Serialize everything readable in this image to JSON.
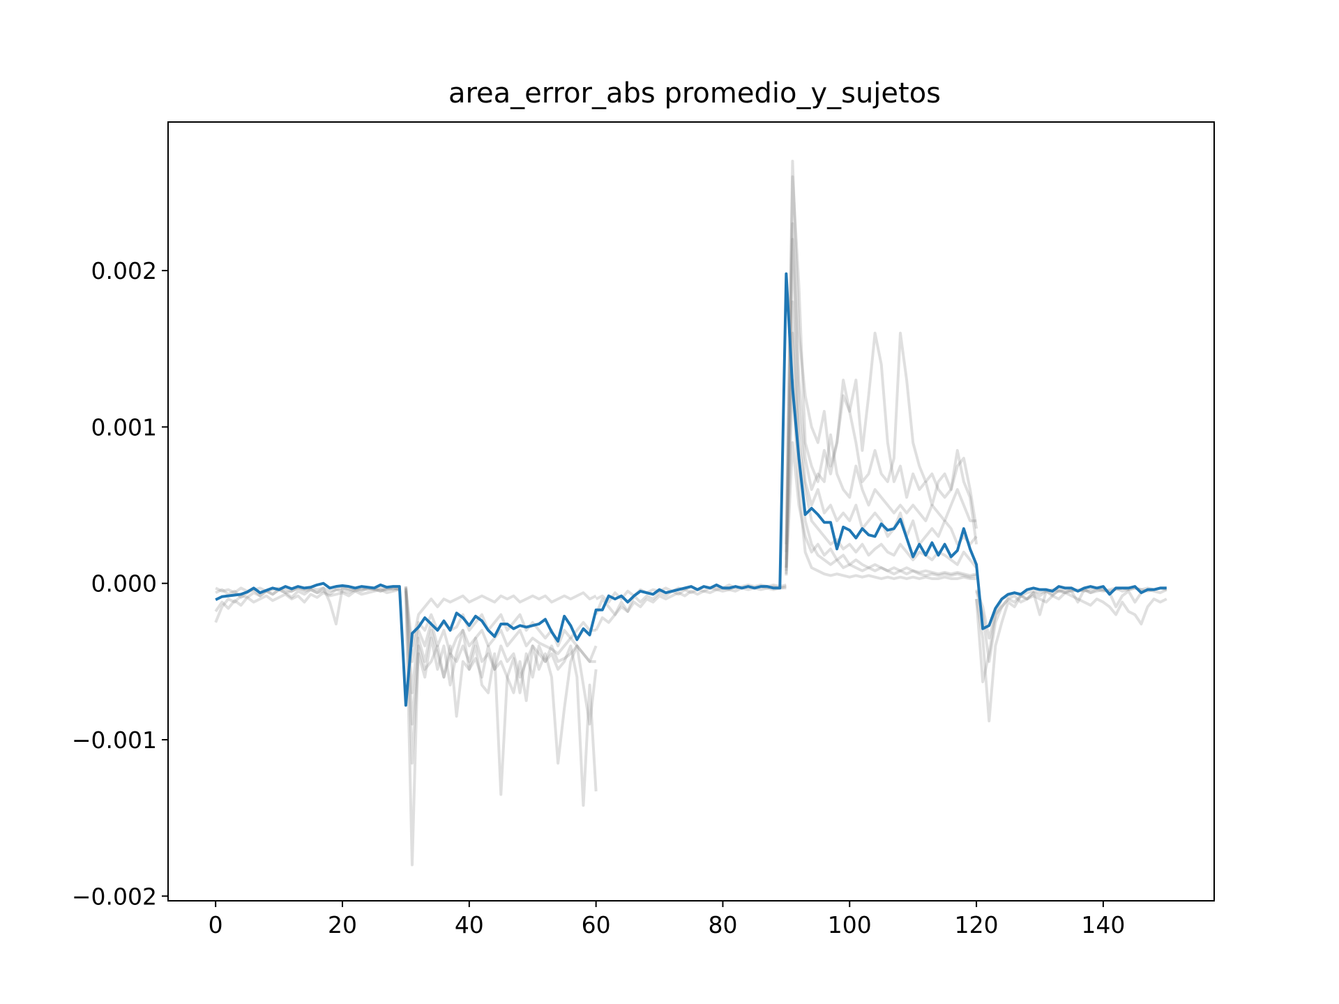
{
  "chart_data": {
    "type": "line",
    "title": "area_error_abs promedio_y_sujetos",
    "xlabel": "",
    "ylabel": "",
    "xlim": [
      -7.5,
      157.5
    ],
    "ylim": [
      -0.00203,
      0.00295
    ],
    "x_ticks": [
      {
        "value": 0,
        "label": "0"
      },
      {
        "value": 20,
        "label": "20"
      },
      {
        "value": 40,
        "label": "40"
      },
      {
        "value": 60,
        "label": "60"
      },
      {
        "value": 80,
        "label": "80"
      },
      {
        "value": 100,
        "label": "100"
      },
      {
        "value": 120,
        "label": "120"
      },
      {
        "value": 140,
        "label": "140"
      }
    ],
    "y_ticks": [
      {
        "value": -0.002,
        "label": "−0.002"
      },
      {
        "value": -0.001,
        "label": "−0.001"
      },
      {
        "value": 0.0,
        "label": "0.000"
      },
      {
        "value": 0.001,
        "label": "0.001"
      },
      {
        "value": 0.002,
        "label": "0.002"
      }
    ],
    "grid": false,
    "legend": "none",
    "colors": {
      "mean": "#1f77b4",
      "subjects": "#808080"
    },
    "mean_series": {
      "x_start": 0,
      "values": [
        -0.000105,
        -8.5e-05,
        -8e-05,
        -7.5e-05,
        -7e-05,
        -5.5e-05,
        -3e-05,
        -6e-05,
        -4.5e-05,
        -3e-05,
        -4e-05,
        -2e-05,
        -3.5e-05,
        -2e-05,
        -3e-05,
        -2.5e-05,
        -1e-05,
        0.0,
        -3e-05,
        -2e-05,
        -1.5e-05,
        -2e-05,
        -3e-05,
        -2e-05,
        -2.5e-05,
        -3e-05,
        -1e-05,
        -2.5e-05,
        -2e-05,
        -2e-05,
        -0.00078,
        -0.00032,
        -0.00028,
        -0.00022,
        -0.00026,
        -0.0003,
        -0.00024,
        -0.0003,
        -0.00019,
        -0.00022,
        -0.00027,
        -0.00021,
        -0.00024,
        -0.0003,
        -0.00034,
        -0.00026,
        -0.00026,
        -0.00029,
        -0.00027,
        -0.00028,
        -0.00027,
        -0.00026,
        -0.00023,
        -0.00031,
        -0.00037,
        -0.00021,
        -0.00027,
        -0.00036,
        -0.00029,
        -0.00033,
        -0.00017,
        -0.00017,
        -8e-05,
        -0.0001,
        -8e-05,
        -0.00012,
        -8e-05,
        -5e-05,
        -6e-05,
        -7e-05,
        -4e-05,
        -6e-05,
        -5e-05,
        -4e-05,
        -3e-05,
        -2e-05,
        -4e-05,
        -2e-05,
        -3e-05,
        -1e-05,
        -3e-05,
        -3e-05,
        -2e-05,
        -3e-05,
        -2e-05,
        -3e-05,
        -2e-05,
        -2e-05,
        -3e-05,
        -3e-05,
        0.00198,
        0.00125,
        0.0008,
        0.00044,
        0.00048,
        0.00044,
        0.00039,
        0.00039,
        0.00022,
        0.00036,
        0.00034,
        0.00029,
        0.00035,
        0.00031,
        0.0003,
        0.00038,
        0.00034,
        0.00035,
        0.00041,
        0.00029,
        0.00017,
        0.00025,
        0.00018,
        0.00026,
        0.00018,
        0.00025,
        0.00017,
        0.00021,
        0.00035,
        0.00022,
        0.00012,
        -0.00029,
        -0.00027,
        -0.00016,
        -0.0001,
        -7e-05,
        -6e-05,
        -7e-05,
        -4e-05,
        -3e-05,
        -4e-05,
        -4e-05,
        -5e-05,
        -2e-05,
        -3e-05,
        -3e-05,
        -5e-05,
        -3e-05,
        -2e-05,
        -3e-05,
        -2e-05,
        -7e-05,
        -3e-05,
        -3e-05,
        -3e-05,
        -2e-05,
        -6e-05,
        -4e-05,
        -4e-05,
        -3e-05,
        -3e-05
      ]
    },
    "subject_series": [
      {
        "x_start": 0,
        "values": [
          -3e-05,
          -5e-05,
          -4e-05,
          -6e-05,
          -3e-05,
          -5e-05,
          -4e-05,
          -3e-05,
          -5e-05,
          -4e-05,
          -3e-05,
          -4e-05,
          -5e-05,
          -3e-05,
          -4e-05,
          -3e-05,
          -4e-05,
          -3e-05,
          -5e-05,
          -4e-05,
          -3e-05,
          -4e-05,
          -3e-05,
          -4e-05,
          -3e-05,
          -4e-05,
          -3e-05,
          -4e-05,
          -3e-05,
          -4e-05
        ]
      },
      {
        "x_start": 0,
        "values": [
          -0.00025,
          -0.00015,
          -0.0001,
          -0.00012,
          -8e-05,
          -9e-05,
          -6e-05,
          -8e-05,
          -5e-05,
          -7e-05,
          -4e-05,
          -6e-05,
          -5e-05,
          -3e-05,
          -5e-05,
          -4e-05,
          -6e-05,
          -3e-05,
          -0.00012,
          -0.00026,
          -3e-05,
          -4e-05,
          -5e-05,
          -3e-05,
          -4e-05,
          -3e-05,
          -5e-05,
          -4e-05,
          -3e-05,
          -4e-05
        ]
      },
      {
        "x_start": 0,
        "values": [
          -0.00018,
          -0.00012,
          -0.00016,
          -0.00011,
          -0.00014,
          -9e-05,
          -0.00012,
          -0.0001,
          -8e-05,
          -0.00011,
          -9e-05,
          -7e-05,
          -0.0001,
          -8e-05,
          -0.00012,
          -7e-05,
          -9e-05,
          -6e-05,
          -8e-05,
          -7e-05,
          -6e-05,
          -8e-05,
          -5e-05,
          -7e-05,
          -6e-05,
          -5e-05,
          -4e-05,
          -6e-05,
          -5e-05,
          -4e-05
        ]
      },
      {
        "x_start": 0,
        "values": [
          -6e-05,
          -4e-05,
          -7e-05,
          -5e-05,
          -9e-05,
          -6e-05,
          -4e-05,
          -8e-05,
          -5e-05,
          -7e-05,
          -4e-05,
          -6e-05,
          -9e-05,
          -5e-05,
          -7e-05,
          -4e-05,
          -6e-05,
          -5e-05,
          -7e-05,
          -4e-05,
          -5e-05,
          -6e-05,
          -4e-05,
          -5e-05,
          -3e-05,
          -4e-05,
          -5e-05,
          -3e-05,
          -4e-05,
          -3e-05
        ]
      },
      {
        "x_start": 30,
        "values": [
          -5e-05,
          -0.0018,
          -0.00035,
          -0.0005,
          -0.0003,
          -0.00045,
          -0.0006,
          -0.0004,
          -0.00085,
          -0.0005,
          -0.00055,
          -0.0004,
          -0.00065,
          -0.0007,
          -0.00045,
          -0.00135,
          -0.0006,
          -0.00048,
          -0.0007,
          -0.00045,
          -0.0006,
          -0.0004,
          -0.0005,
          -0.00045,
          -0.00055,
          -0.0005,
          -0.0004,
          -0.0006,
          -0.00142,
          -0.00065,
          -0.00133
        ]
      },
      {
        "x_start": 30,
        "values": [
          -4e-05,
          -0.00115,
          -0.00045,
          -0.0006,
          -0.00035,
          -0.00055,
          -0.0004,
          -0.00065,
          -0.00045,
          -0.0003,
          -0.00055,
          -0.00048,
          -0.0006,
          -0.0004,
          -0.00055,
          -0.0005,
          -0.0006,
          -0.0007,
          -0.0005,
          -0.00075,
          -0.0004,
          -0.00055,
          -0.00045,
          -0.0006,
          -0.00115,
          -0.0008,
          -0.0005,
          -0.0004,
          -0.00065,
          -0.0009,
          -0.00055
        ]
      },
      {
        "x_start": 30,
        "values": [
          -3e-05,
          -0.0009,
          -0.0004,
          -0.00055,
          -0.0005,
          -0.0004,
          -0.0006,
          -0.00045,
          -0.0005,
          -0.0004,
          -0.0005,
          -0.00035,
          -0.0005,
          -0.00045,
          -0.00055,
          -0.0004,
          -0.0005,
          -0.00045,
          -0.0006,
          -0.0005,
          -0.0004,
          -0.00045,
          -0.0005,
          -0.0004,
          -0.0005,
          -0.00048,
          -0.00045,
          -0.0004,
          -0.00045,
          -0.0005,
          -0.0004
        ]
      },
      {
        "x_start": 30,
        "values": [
          -2e-05,
          -0.0007,
          -0.0003,
          -0.0004,
          -0.00025,
          -0.0004,
          -0.0003,
          -0.00045,
          -0.00035,
          -0.0003,
          -0.0004,
          -0.00035,
          -0.0003,
          -0.0004,
          -0.00035,
          -0.0003,
          -0.0004,
          -0.00035,
          -0.0003,
          -0.0004,
          -0.00035,
          -0.00038,
          -0.0004,
          -0.00042,
          -0.00045,
          -0.0004,
          -0.00035,
          -0.0004,
          -0.00045,
          -0.0005,
          -0.0005
        ]
      },
      {
        "x_start": 30,
        "values": [
          -2e-05,
          -0.0005,
          -0.00025,
          -0.0003,
          -0.0002,
          -0.0003,
          -0.00025,
          -0.0003,
          -0.00028,
          -0.0002,
          -0.0003,
          -0.00025,
          -0.0002,
          -0.0003,
          -0.00025,
          -0.0002,
          -0.0003,
          -0.00025,
          -0.0002,
          -0.0003,
          -0.00025,
          -0.0003,
          -0.00035,
          -0.0003,
          -0.0004,
          -0.0003,
          -0.00035,
          -0.0003,
          -0.00025,
          -0.0003,
          -0.0003
        ]
      },
      {
        "x_start": 30,
        "values": [
          -3e-05,
          -0.0004,
          -0.0002,
          -0.00015,
          -0.0001,
          -0.00015,
          -0.0001,
          -0.00012,
          -0.0001,
          -8e-05,
          -0.00012,
          -0.0001,
          -8e-05,
          -0.0001,
          -0.00012,
          -8e-05,
          -0.0001,
          -8e-05,
          -0.00012,
          -0.0001,
          -8e-05,
          -0.0001,
          -8e-05,
          -0.00012,
          -0.0001,
          -8e-05,
          -0.0001,
          -8e-05,
          -6e-05,
          -0.0001,
          -8e-05
        ]
      },
      {
        "x_start": 60,
        "values": [
          -0.0003,
          -0.00022,
          -0.00025,
          -0.0002,
          -0.00015,
          -0.00018,
          -0.00012,
          -0.00015,
          -0.0001,
          -0.00012,
          -8e-05,
          -0.0001,
          -8e-05,
          -6e-05,
          -8e-05,
          -5e-05,
          -7e-05,
          -5e-05,
          -6e-05,
          -4e-05,
          -5e-05,
          -4e-05,
          -5e-05,
          -3e-05,
          -4e-05,
          -3e-05,
          -4e-05,
          -3e-05,
          -4e-05,
          -3e-05,
          -3e-05
        ]
      },
      {
        "x_start": 60,
        "values": [
          -0.0002,
          -0.0001,
          -0.00015,
          -0.0002,
          -0.00012,
          -0.00018,
          -8e-05,
          -0.00012,
          -8e-05,
          -0.0001,
          -6e-05,
          -8e-05,
          -5e-05,
          -7e-05,
          -4e-05,
          -6e-05,
          -4e-05,
          -5e-05,
          -3e-05,
          -4e-05,
          -3e-05,
          -4e-05,
          -2e-05,
          -3e-05,
          -2e-05,
          -3e-05,
          -2e-05,
          -3e-05,
          -2e-05,
          -3e-05,
          -2e-05
        ]
      },
      {
        "x_start": 60,
        "values": [
          -0.0001,
          -8e-05,
          -0.00012,
          -6e-05,
          -0.0001,
          -5e-05,
          -8e-05,
          -4e-05,
          -6e-05,
          -4e-05,
          -5e-05,
          -3e-05,
          -5e-05,
          -3e-05,
          -4e-05,
          -2e-05,
          -4e-05,
          -2e-05,
          -3e-05,
          -2e-05,
          -3e-05,
          -1e-05,
          -3e-05,
          -2e-05,
          -1e-05,
          -2e-05,
          -1e-05,
          -2e-05,
          -1e-05,
          -2e-05,
          -1e-05
        ]
      },
      {
        "x_start": 90,
        "values": [
          0.00025,
          0.0027,
          0.0016,
          0.0012,
          0.001,
          0.0009,
          0.0011,
          0.00075,
          0.0009,
          0.0012,
          0.0011,
          0.0013,
          0.00085,
          0.0012,
          0.0016,
          0.0014,
          0.0009,
          0.00065,
          0.00075,
          0.00055,
          0.0007,
          0.0006,
          0.00065,
          0.0005,
          0.00065,
          0.0007,
          0.0006,
          0.00085,
          0.00065,
          0.00055,
          0.00025
        ]
      },
      {
        "x_start": 90,
        "values": [
          0.0002,
          0.0026,
          0.0019,
          0.0009,
          0.00075,
          0.00065,
          0.00085,
          0.0007,
          0.0009,
          0.0013,
          0.0011,
          0.0009,
          0.00065,
          0.0007,
          0.00085,
          0.0007,
          0.00065,
          0.0008,
          0.0016,
          0.0013,
          0.0009,
          0.00075,
          0.00065,
          0.0007,
          0.0006,
          0.00055,
          0.0006,
          0.00075,
          0.0008,
          0.0006,
          0.00035
        ]
      },
      {
        "x_start": 90,
        "values": [
          0.00015,
          0.0023,
          0.0013,
          0.0008,
          0.0006,
          0.0007,
          0.00065,
          0.00095,
          0.0007,
          0.0006,
          0.00055,
          0.00075,
          0.0006,
          0.0005,
          0.0006,
          0.00055,
          0.0005,
          0.00045,
          0.0005,
          0.00045,
          0.0005,
          0.00045,
          0.0004,
          0.0005,
          0.00045,
          0.0004,
          0.0005,
          0.0006,
          0.0005,
          0.0004,
          0.0004
        ]
      },
      {
        "x_start": 90,
        "values": [
          0.0001,
          0.0022,
          0.0011,
          0.00065,
          0.0005,
          0.0006,
          0.00045,
          0.0005,
          0.0004,
          0.00045,
          0.0004,
          0.0005,
          0.00035,
          0.0004,
          0.00045,
          0.0004,
          0.0003,
          0.00035,
          0.00045,
          0.0003,
          0.0004,
          0.00025,
          0.0003,
          0.00035,
          0.0003,
          0.0004,
          0.00035,
          0.00025,
          0.0003,
          0.00025,
          0.0003
        ]
      },
      {
        "x_start": 90,
        "values": [
          0.0001,
          0.0018,
          0.0009,
          0.0006,
          0.0004,
          0.00035,
          0.0003,
          0.00025,
          0.00028,
          0.00022,
          0.00025,
          0.0002,
          0.00025,
          0.00018,
          0.00022,
          0.00025,
          0.0002,
          0.00018,
          0.00025,
          0.0002,
          0.00015,
          0.0002,
          0.00018,
          0.00015,
          0.0002,
          0.00018,
          0.00015,
          0.00012,
          0.0002,
          0.00015,
          0.0001
        ]
      },
      {
        "x_start": 90,
        "values": [
          8e-05,
          0.0016,
          0.0008,
          0.0004,
          0.00025,
          0.00018,
          0.00015,
          0.00012,
          0.00015,
          0.0001,
          0.00012,
          0.0001,
          8e-05,
          0.0001,
          8e-05,
          0.0001,
          8e-05,
          6e-05,
          8e-05,
          6e-05,
          8e-05,
          6e-05,
          5e-05,
          6e-05,
          5e-05,
          6e-05,
          5e-05,
          6e-05,
          5e-05,
          4e-05,
          5e-05
        ]
      },
      {
        "x_start": 90,
        "values": [
          5e-05,
          0.0013,
          0.0006,
          0.0002,
          0.0001,
          8e-05,
          6e-05,
          5e-05,
          6e-05,
          5e-05,
          4e-05,
          5e-05,
          4e-05,
          5e-05,
          4e-05,
          3e-05,
          4e-05,
          3e-05,
          4e-05,
          3e-05,
          4e-05,
          3e-05,
          4e-05,
          3e-05,
          3e-05,
          4e-05,
          3e-05,
          3e-05,
          4e-05,
          3e-05,
          3e-05
        ]
      },
      {
        "x_start": 90,
        "values": [
          6e-05,
          0.0009,
          0.0005,
          0.0003,
          0.0002,
          0.00025,
          0.00018,
          0.00022,
          0.00015,
          0.00018,
          0.00012,
          0.00015,
          0.00012,
          0.0001,
          0.00012,
          0.0001,
          8e-05,
          0.0001,
          8e-05,
          0.0001,
          8e-05,
          7e-05,
          8e-05,
          7e-05,
          6e-05,
          7e-05,
          6e-05,
          7e-05,
          6e-05,
          5e-05,
          6e-05
        ]
      },
      {
        "x_start": 120,
        "values": [
          -0.0001,
          -0.00035,
          -0.00088,
          -0.0004,
          -0.00025,
          -0.00012,
          -0.00015,
          -8e-05,
          -0.0001,
          -6e-05,
          -0.0002,
          -5e-05,
          -8e-05,
          -4e-05,
          -6e-05,
          -5e-05,
          -0.00012,
          -4e-05,
          -6e-05,
          -5e-05,
          -4e-05,
          -6e-05,
          -0.00015,
          -8e-05,
          -5e-05,
          -0.00012,
          -6e-05,
          -4e-05,
          -5e-05,
          -6e-05,
          -4e-05
        ]
      },
      {
        "x_start": 120,
        "values": [
          -0.0001,
          -0.00063,
          -0.00045,
          -0.0002,
          -0.00015,
          -0.0001,
          -0.00012,
          -8e-05,
          -0.0001,
          -6e-05,
          -8e-05,
          -5e-05,
          -7e-05,
          -5e-05,
          -6e-05,
          -4e-05,
          -5e-05,
          -4e-05,
          -6e-05,
          -4e-05,
          -5e-05,
          -4e-05,
          -3e-05,
          -5e-05,
          -4e-05,
          -3e-05,
          -4e-05,
          -3e-05,
          -4e-05,
          -3e-05,
          -3e-05
        ]
      },
      {
        "x_start": 120,
        "values": [
          -5e-05,
          -0.0002,
          -0.0005,
          -0.00025,
          -0.00015,
          -0.0001,
          -8e-05,
          -0.00012,
          -0.0001,
          -8e-05,
          -0.0001,
          -0.00012,
          -8e-05,
          -0.0001,
          -6e-05,
          -8e-05,
          -0.0001,
          -0.00012,
          -0.00014,
          -0.0001,
          -0.00012,
          -0.00015,
          -0.0002,
          -0.00012,
          -0.00018,
          -0.0002,
          -0.00026,
          -0.00015,
          -0.0001,
          -0.00012,
          -0.0001
        ]
      },
      {
        "x_start": 120,
        "values": [
          -4e-05,
          -0.00015,
          -0.00035,
          -0.0002,
          -0.0001,
          -8e-05,
          -6e-05,
          -8e-05,
          -6e-05,
          -5e-05,
          -6e-05,
          -5e-05,
          -4e-05,
          -5e-05,
          -4e-05,
          -5e-05,
          -4e-05,
          -5e-05,
          -4e-05,
          -3e-05,
          -4e-05,
          -5e-05,
          -4e-05,
          -3e-05,
          -4e-05,
          -3e-05,
          -4e-05,
          -5e-05,
          -4e-05,
          -3e-05,
          -4e-05
        ]
      }
    ]
  }
}
